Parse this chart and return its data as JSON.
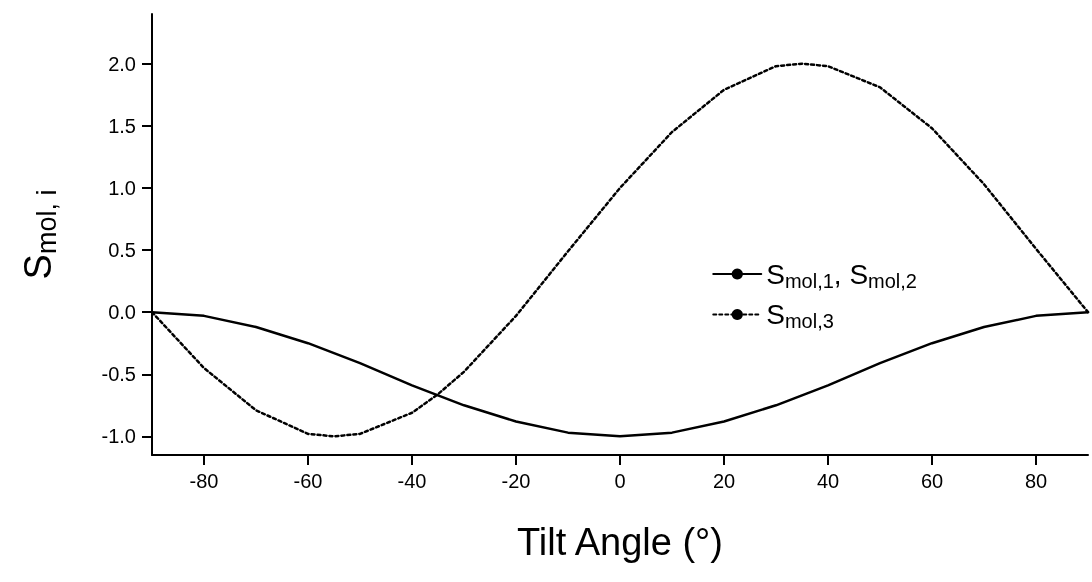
{
  "chart_data": {
    "type": "line",
    "xlabel": "Tilt Angle (°)",
    "ylabel": "S$_{mol, i}$",
    "x": [
      -90,
      -80,
      -70,
      -60,
      -55,
      -50,
      -40,
      -35,
      -30,
      -20,
      -10,
      0,
      10,
      20,
      30,
      35,
      40,
      50,
      60,
      70,
      80,
      90
    ],
    "series": [
      {
        "name": "S$_{mol,1}$, S$_{mol,2}$",
        "color": "#000000",
        "line_style": "solid",
        "values": [
          0,
          -0.03,
          -0.12,
          -0.25,
          -0.33,
          -0.41,
          -0.59,
          -0.67,
          -0.75,
          -0.88,
          -0.97,
          -1.0,
          -0.97,
          -0.88,
          -0.75,
          -0.67,
          -0.59,
          -0.41,
          -0.25,
          -0.12,
          -0.03,
          0
        ]
      },
      {
        "name": "S$_{mol,3}$",
        "color": "#000000",
        "line_style": "dotted",
        "values": [
          0,
          -0.45,
          -0.79,
          -0.98,
          -1.0,
          -0.98,
          -0.81,
          -0.66,
          -0.48,
          -0.03,
          0.49,
          1.0,
          1.45,
          1.79,
          1.98,
          2.0,
          1.98,
          1.81,
          1.48,
          1.03,
          0.51,
          0
        ]
      }
    ],
    "xlim": [
      -90,
      90
    ],
    "xticks": [
      -80,
      -60,
      -40,
      -20,
      0,
      20,
      40,
      60,
      80
    ],
    "ylim": [
      -1.15,
      2.4
    ],
    "yticks": [
      {
        "value": -1,
        "label": "-1.0"
      },
      {
        "value": -0.5,
        "label": "-0.5"
      },
      {
        "value": 0,
        "label": "0.0"
      },
      {
        "value": 0.5,
        "label": "0.5"
      },
      {
        "value": 1,
        "label": "1.0"
      },
      {
        "value": 1.5,
        "label": "1.5"
      },
      {
        "value": 2,
        "label": "2.0"
      }
    ],
    "grid": false,
    "legend": "right",
    "marker": "none"
  }
}
